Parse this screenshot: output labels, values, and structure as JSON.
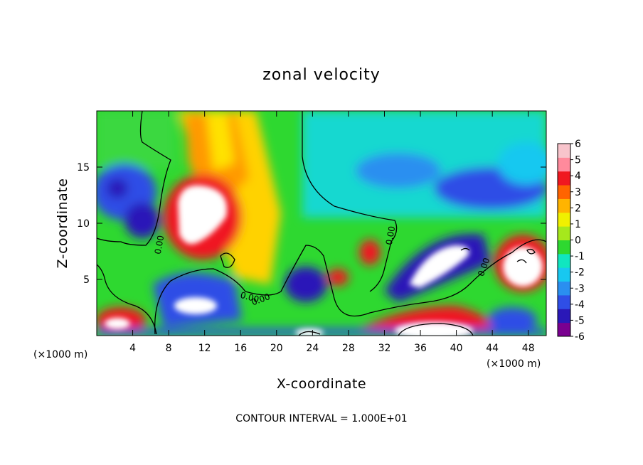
{
  "chart_data": {
    "type": "heatmap",
    "title": "zonal velocity",
    "xlabel": "X-coordinate",
    "ylabel": "Z-coordinate",
    "x_unit": "(×1000 m)",
    "z_unit": "(×1000 m)",
    "xlim": [
      0,
      50
    ],
    "ylim": [
      0,
      20
    ],
    "x_ticks": [
      "4",
      "8",
      "12",
      "16",
      "20",
      "24",
      "28",
      "32",
      "36",
      "40",
      "44",
      "48"
    ],
    "y_ticks": [
      "5",
      "10",
      "15"
    ],
    "colorbar": {
      "ticks": [
        "6",
        "5",
        "4",
        "3",
        "2",
        "1",
        "0",
        "-1",
        "-2",
        "-3",
        "-4",
        "-5",
        "-6"
      ],
      "range": [
        -6,
        6
      ],
      "colors": [
        "#7a0090",
        "#2a18b8",
        "#2f4ee6",
        "#2a8ff0",
        "#18c8f0",
        "#10e6c0",
        "#2ed830",
        "#a6e81c",
        "#f0f000",
        "#ffb400",
        "#ff6400",
        "#f01820",
        "#ff8a9c",
        "#f8c4cc"
      ]
    },
    "contour_labels": [
      "0.00",
      "0.00",
      "0.00",
      "0.00",
      "0.00"
    ],
    "contour_interval_note": "CONTOUR INTERVAL = 1.000E+01"
  }
}
